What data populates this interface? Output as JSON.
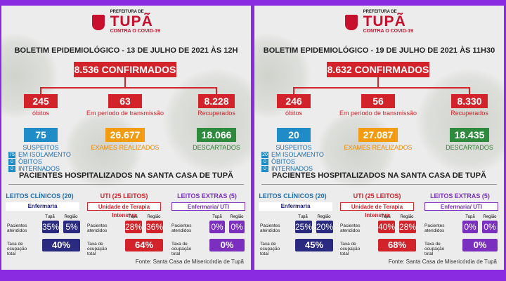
{
  "colors": {
    "accent_red": "#d2232a",
    "blue": "#1f8cc8",
    "orange": "#f39c12",
    "green": "#2e8b3e",
    "navy": "#2a2a80",
    "purple": "#7b2fbf",
    "frame": "#8a2be2"
  },
  "bulletins": [
    {
      "logo": {
        "pre": "PREFEITURA DE",
        "main": "TUPÃ",
        "sub": "CONTRA O COVID-19"
      },
      "title": "BOLETIM EPIDEMIOLÓGICO - 13 DE JULHO DE 2021 ÀS 12H",
      "confirmados": "8.536  CONFIRMADOS",
      "obitos": {
        "value": "245",
        "label": "óbitos"
      },
      "transmissao": {
        "value": "63",
        "label": "Em período de transmissão"
      },
      "recuperados": {
        "value": "8.228",
        "label": "Recuperados"
      },
      "suspeitos": {
        "value": "75",
        "label": "SUSPEITOS"
      },
      "exames": {
        "value": "26.677",
        "label": "EXAMES REALIZADOS"
      },
      "descartados": {
        "value": "18.066",
        "label": "DESCARTADOS"
      },
      "sub": [
        {
          "value": "75",
          "label": "EM ISOLAMENTO"
        },
        {
          "value": "0",
          "label": "ÓBITOS"
        },
        {
          "value": "0",
          "label": "INTERNADOS"
        }
      ],
      "hosp_title": "PACIENTES HOSPITALIZADOS NA SANTA CASA DE TUPÃ",
      "clinicos": {
        "title": "LEITOS CLÍNICOS (20)",
        "bar": "Enfermaria",
        "tupa_hdr": "Tupã",
        "regiao_hdr": "Região",
        "row1": "Pacientes atendidos",
        "tupa": "35%",
        "regiao": "5%",
        "row2": "Taxa de ocupação total",
        "total": "40%"
      },
      "uti": {
        "title": "UTI (25 LEITOS)",
        "bar": "Unidade de Terapia Intensiva",
        "tupa_hdr": "Tupã",
        "regiao_hdr": "Região",
        "row1": "Pacientes atendidos",
        "tupa": "28%",
        "regiao": "36%",
        "row2": "Taxa de ocupação total",
        "total": "64%"
      },
      "extras": {
        "title": "LEITOS EXTRAS (5)",
        "bar": "Enfermaria/ UTI",
        "tupa_hdr": "Tupã",
        "regiao_hdr": "Região",
        "row1": "Pacientes atendidos",
        "tupa": "0%",
        "regiao": "0%",
        "row2": "Taxa de ocupação total",
        "total": "0%"
      },
      "fonte": "Fonte: Santa Casa de Misericórdia de Tupã"
    },
    {
      "logo": {
        "pre": "PREFEITURA DE",
        "main": "TUPÃ",
        "sub": "CONTRA O COVID-19"
      },
      "title": "BOLETIM EPIDEMIOLÓGICO - 19 DE JULHO DE 2021 ÀS 11H30",
      "confirmados": "8.632  CONFIRMADOS",
      "obitos": {
        "value": "246",
        "label": "óbitos"
      },
      "transmissao": {
        "value": "56",
        "label": "Em período de transmissão"
      },
      "recuperados": {
        "value": "8.330",
        "label": "Recuperados"
      },
      "suspeitos": {
        "value": "20",
        "label": "SUSPEITOS"
      },
      "exames": {
        "value": "27.087",
        "label": "EXAMES REALIZADOS"
      },
      "descartados": {
        "value": "18.435",
        "label": "DESCARTADOS"
      },
      "sub": [
        {
          "value": "20",
          "label": "EM ISOLAMENTO"
        },
        {
          "value": "0",
          "label": "ÓBITOS"
        },
        {
          "value": "0",
          "label": "INTERNADOS"
        }
      ],
      "hosp_title": "PACIENTES HOSPITALIZADOS NA SANTA CASA DE TUPÃ",
      "clinicos": {
        "title": "LEITOS CLÍNICOS (20)",
        "bar": "Enfermaria",
        "tupa_hdr": "Tupã",
        "regiao_hdr": "Região",
        "row1": "Pacientes atendidos",
        "tupa": "25%",
        "regiao": "20%",
        "row2": "Taxa de ocupação total",
        "total": "45%"
      },
      "uti": {
        "title": "UTI (25 LEITOS)",
        "bar": "Unidade de Terapia Intensiva",
        "tupa_hdr": "Tupã",
        "regiao_hdr": "Região",
        "row1": "Pacientes atendidos",
        "tupa": "40%",
        "regiao": "28%",
        "row2": "Taxa de ocupação total",
        "total": "68%"
      },
      "extras": {
        "title": "LEITOS EXTRAS (5)",
        "bar": "Enfermaria/ UTI",
        "tupa_hdr": "Tupã",
        "regiao_hdr": "Região",
        "row1": "Pacientes atendidos",
        "tupa": "0%",
        "regiao": "0%",
        "row2": "Taxa de ocupação total",
        "total": "0%"
      },
      "fonte": "Fonte: Santa Casa de Misericórdia de Tupã"
    }
  ]
}
